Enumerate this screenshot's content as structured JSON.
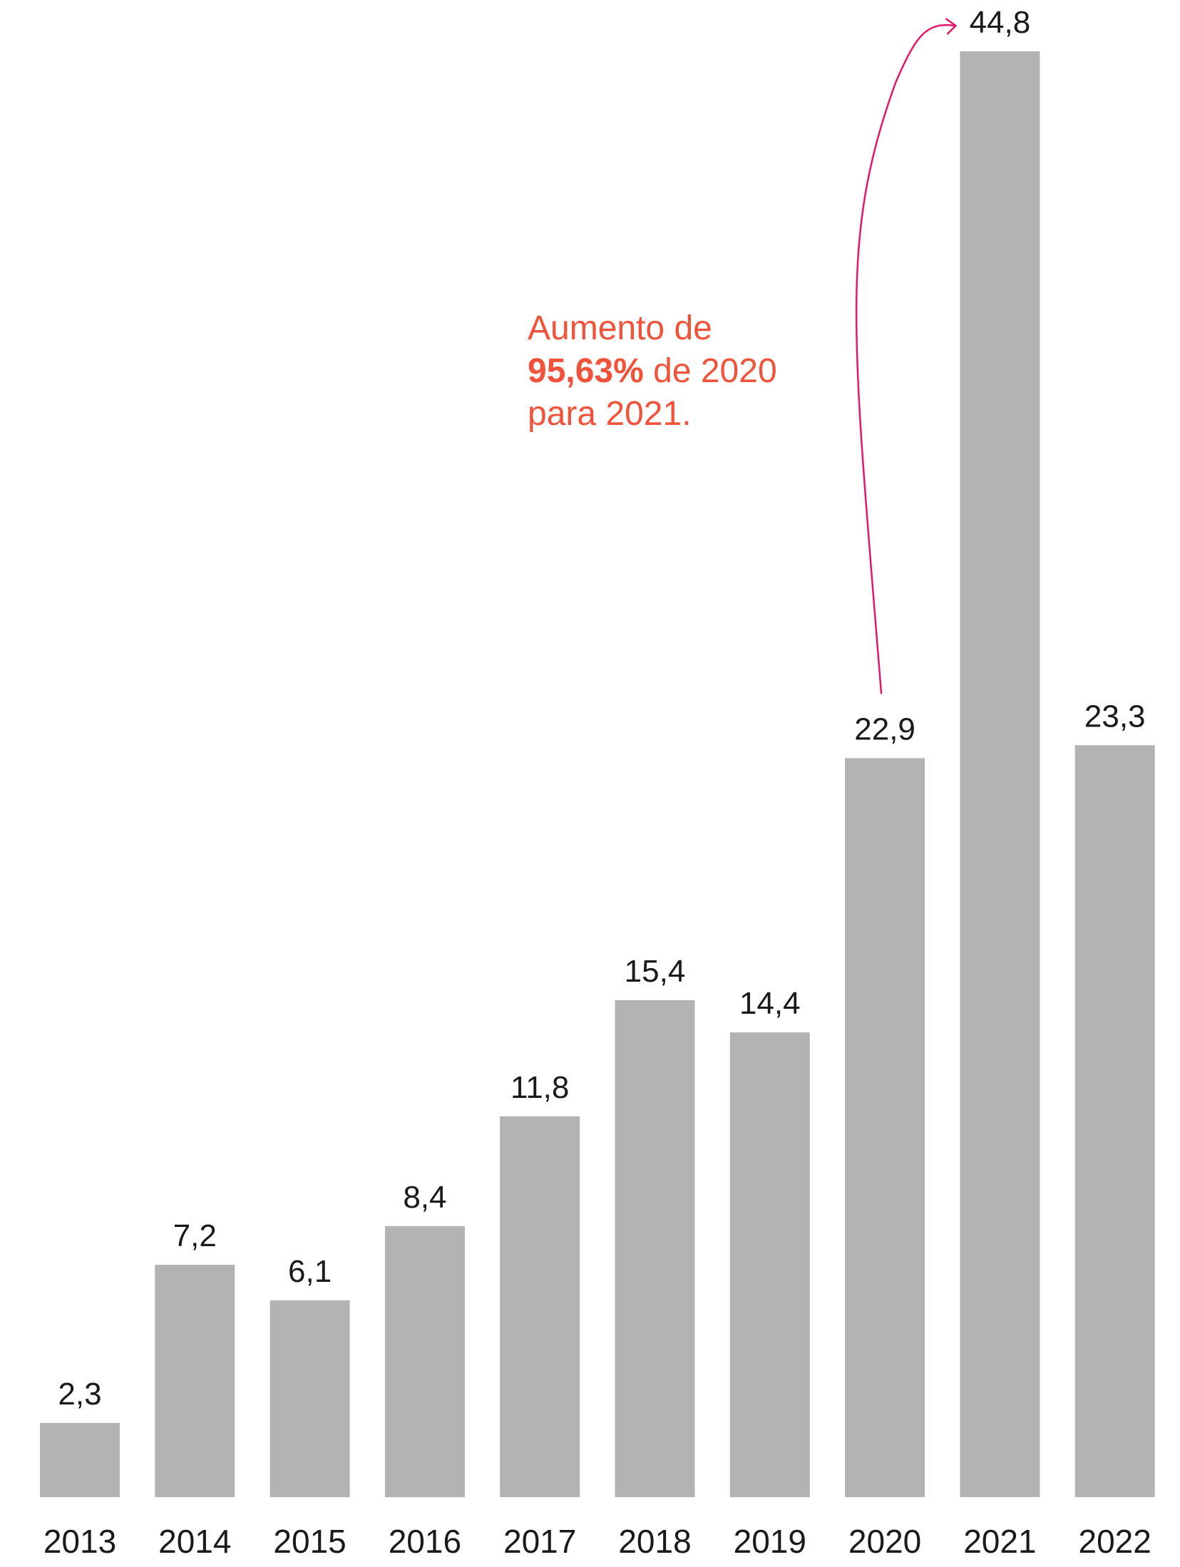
{
  "chart_data": {
    "type": "bar",
    "categories": [
      "2013",
      "2014",
      "2015",
      "2016",
      "2017",
      "2018",
      "2019",
      "2020",
      "2021",
      "2022"
    ],
    "values": [
      2.3,
      7.2,
      6.1,
      8.4,
      11.8,
      15.4,
      14.4,
      22.9,
      44.8,
      23.3
    ],
    "value_labels": [
      "2,3",
      "7,2",
      "6,1",
      "8,4",
      "11,8",
      "15,4",
      "14,4",
      "22,9",
      "44,8",
      "23,3"
    ],
    "title": "",
    "xlabel": "",
    "ylabel": "",
    "ylim": [
      0,
      44.8
    ],
    "grid": false,
    "legend": "none",
    "bar_color": "#b3b3b3",
    "annotation": {
      "line1": "Aumento de",
      "line2_bold": "95,63%",
      "line2_rest": " de 2020",
      "line3": "para 2021.",
      "text_color": "#f0533a",
      "arrow_color": "#e5166b",
      "arrow_from": "2020",
      "arrow_to": "2021"
    }
  }
}
